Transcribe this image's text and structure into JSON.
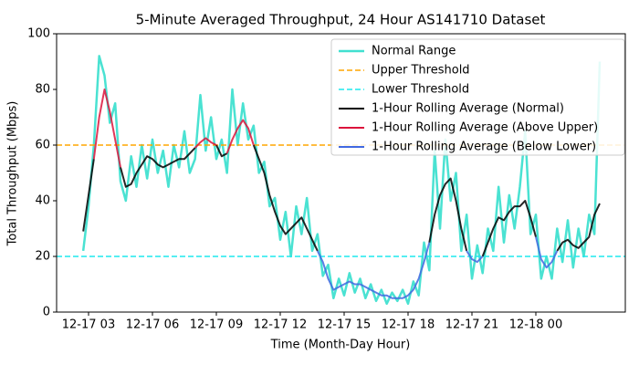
{
  "chart_data": {
    "type": "line",
    "title": "5-Minute Averaged Throughput, 24 Hour AS141710 Dataset",
    "x_label": "Time (Month-Day Hour)",
    "y_label": "Total Throughput (Mbps)",
    "xlim": [
      1.5,
      28.2
    ],
    "ylim": [
      0,
      100
    ],
    "xticks": [
      {
        "value": 3,
        "label": "12-17 03"
      },
      {
        "value": 6,
        "label": "12-17 06"
      },
      {
        "value": 9,
        "label": "12-17 09"
      },
      {
        "value": 12,
        "label": "12-17 12"
      },
      {
        "value": 15,
        "label": "12-17 15"
      },
      {
        "value": 18,
        "label": "12-17 18"
      },
      {
        "value": 21,
        "label": "12-17 21"
      },
      {
        "value": 24,
        "label": "12-18 00"
      }
    ],
    "yticks": [
      0,
      20,
      40,
      60,
      80,
      100
    ],
    "legend": "upper right",
    "x": [
      2.75,
      3,
      3.25,
      3.5,
      3.75,
      4,
      4.25,
      4.5,
      4.75,
      5,
      5.25,
      5.5,
      5.75,
      6,
      6.25,
      6.5,
      6.75,
      7,
      7.25,
      7.5,
      7.75,
      8,
      8.25,
      8.5,
      8.75,
      9,
      9.25,
      9.5,
      9.75,
      10,
      10.25,
      10.5,
      10.75,
      11,
      11.25,
      11.5,
      11.75,
      12,
      12.25,
      12.5,
      12.75,
      13,
      13.25,
      13.5,
      13.75,
      14,
      14.25,
      14.5,
      14.75,
      15,
      15.25,
      15.5,
      15.75,
      16,
      16.25,
      16.5,
      16.75,
      17,
      17.25,
      17.5,
      17.75,
      18,
      18.25,
      18.5,
      18.75,
      19,
      19.25,
      19.5,
      19.75,
      20,
      20.25,
      20.5,
      20.75,
      21,
      21.25,
      21.5,
      21.75,
      22,
      22.25,
      22.5,
      22.75,
      23,
      23.25,
      23.5,
      23.75,
      24,
      24.25,
      24.5,
      24.75,
      25,
      25.25,
      25.5,
      25.75,
      26,
      26.25,
      26.5,
      26.75,
      27
    ],
    "series": [
      {
        "name": "Normal Range",
        "color": "#40e0d0",
        "width": 2.5,
        "values": [
          22,
          38,
          60,
          92,
          85,
          68,
          75,
          47,
          40,
          56,
          45,
          60,
          48,
          62,
          50,
          58,
          45,
          60,
          52,
          65,
          50,
          55,
          78,
          58,
          70,
          55,
          62,
          50,
          80,
          60,
          75,
          62,
          67,
          50,
          54,
          38,
          41,
          26,
          36,
          20,
          38,
          28,
          41,
          22,
          28,
          13,
          17,
          5,
          12,
          6,
          14,
          7,
          12,
          5,
          10,
          4,
          8,
          3,
          7,
          4,
          8,
          3,
          11,
          6,
          25,
          15,
          58,
          30,
          62,
          40,
          50,
          22,
          35,
          12,
          24,
          14,
          30,
          22,
          45,
          25,
          42,
          30,
          45,
          65,
          28,
          35,
          12,
          20,
          12,
          30,
          18,
          33,
          16,
          30,
          20,
          35,
          28,
          90
        ]
      },
      {
        "name": "Upper Threshold",
        "color": "#ffa500",
        "dash": "6 3",
        "width": 1.6,
        "hline": 60
      },
      {
        "name": "Lower Threshold",
        "color": "#1ee8ee",
        "dash": "6 3",
        "width": 1.6,
        "hline": 20
      },
      {
        "name": "1-Hour Rolling Average (Normal)",
        "color": "#000000",
        "width": 2,
        "values": [
          29,
          42,
          55,
          null,
          null,
          null,
          null,
          52,
          45,
          46,
          50,
          53,
          56,
          55,
          53,
          52,
          53,
          54,
          55,
          55,
          57,
          59,
          null,
          null,
          null,
          60,
          56,
          57,
          null,
          null,
          null,
          null,
          60,
          55,
          50,
          42,
          36,
          31,
          28,
          30,
          32,
          34,
          30,
          26,
          22,
          null,
          null,
          null,
          null,
          null,
          null,
          null,
          null,
          null,
          null,
          null,
          null,
          null,
          null,
          null,
          null,
          null,
          null,
          null,
          null,
          25,
          35,
          42,
          46,
          48,
          40,
          30,
          22,
          null,
          null,
          20,
          25,
          30,
          34,
          33,
          36,
          38,
          38,
          40,
          34,
          27,
          null,
          null,
          null,
          22,
          25,
          26,
          24,
          23,
          25,
          27,
          35,
          39
        ]
      },
      {
        "name": "1-Hour Rolling Average (Above Upper)",
        "color": "#dc143c",
        "width": 2,
        "values": [
          null,
          null,
          55,
          70,
          80,
          72,
          62,
          52,
          null,
          null,
          null,
          null,
          null,
          null,
          null,
          null,
          null,
          null,
          null,
          null,
          null,
          59,
          61,
          62.5,
          61,
          60,
          null,
          57,
          62,
          66,
          69,
          66,
          60,
          null,
          null,
          null,
          null,
          null,
          null,
          null,
          null,
          null,
          null,
          null,
          null,
          null,
          null,
          null,
          null,
          null,
          null,
          null,
          null,
          null,
          null,
          null,
          null,
          null,
          null,
          null,
          null,
          null,
          null,
          null,
          null,
          null,
          null,
          null,
          null,
          null,
          null,
          null,
          null,
          null,
          null,
          null,
          null,
          null,
          null,
          null,
          null,
          null,
          null,
          null,
          null,
          null,
          null,
          null,
          null,
          null,
          null,
          null,
          null,
          null,
          null,
          null,
          null,
          null
        ]
      },
      {
        "name": "1-Hour Rolling Average (Below Lower)",
        "color": "#4169e1",
        "width": 2,
        "values": [
          null,
          null,
          null,
          null,
          null,
          null,
          null,
          null,
          null,
          null,
          null,
          null,
          null,
          null,
          null,
          null,
          null,
          null,
          null,
          null,
          null,
          null,
          null,
          null,
          null,
          null,
          null,
          null,
          null,
          null,
          null,
          null,
          null,
          null,
          null,
          null,
          null,
          null,
          null,
          null,
          null,
          null,
          null,
          null,
          22,
          18,
          12,
          8,
          9,
          10,
          11,
          10,
          10,
          9,
          8,
          7,
          6,
          6,
          5,
          5,
          5,
          6,
          8,
          12,
          18,
          25,
          null,
          null,
          null,
          null,
          null,
          null,
          22,
          19,
          18,
          20,
          null,
          null,
          null,
          null,
          null,
          null,
          null,
          null,
          null,
          27,
          19,
          16,
          18,
          22,
          null,
          null,
          null,
          null,
          null,
          null,
          null,
          null
        ]
      }
    ]
  }
}
